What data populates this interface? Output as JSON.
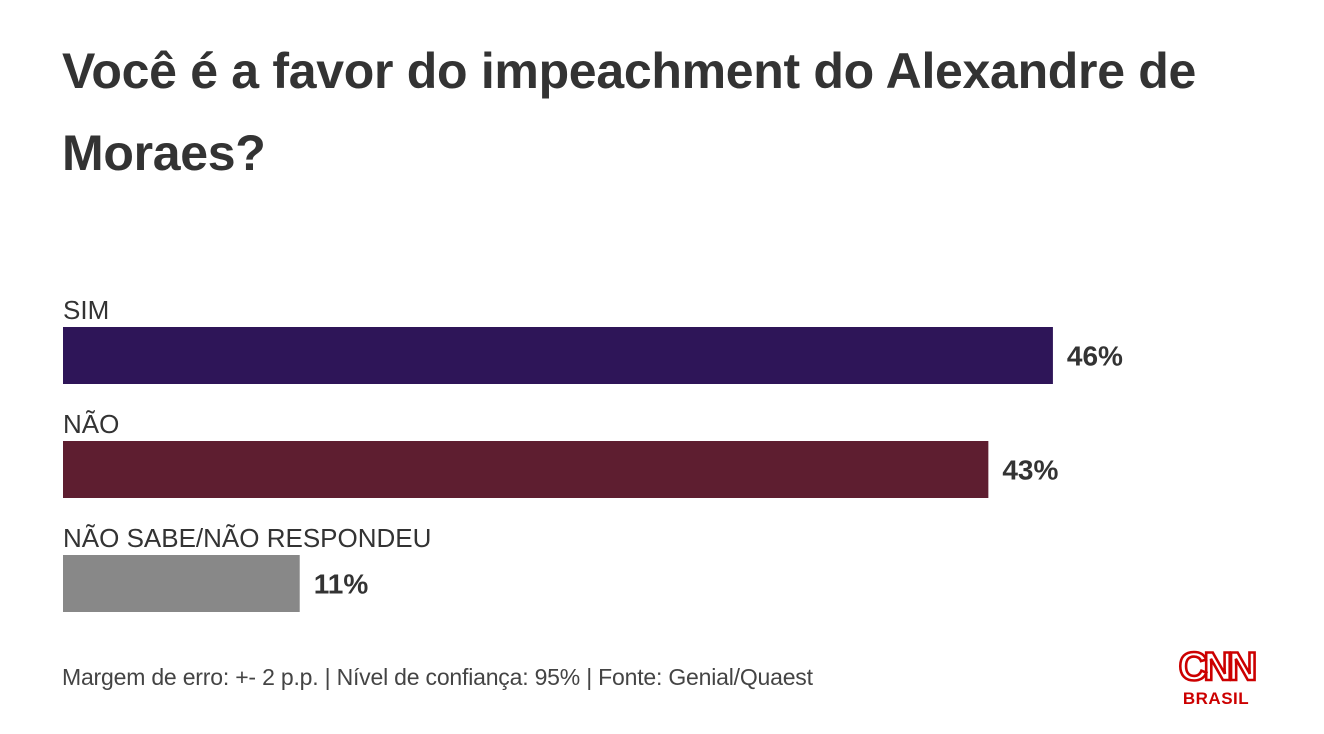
{
  "chart_data": {
    "type": "bar",
    "orientation": "horizontal",
    "title": "Você é a favor do impeachment do Alexandre de Moraes?",
    "categories": [
      "SIM",
      "NÃO",
      "NÃO SABE/NÃO RESPONDEU"
    ],
    "values": [
      46,
      43,
      11
    ],
    "value_labels": [
      "46%",
      "43%",
      "11%"
    ],
    "colors": [
      "#2e1558",
      "#5e1e30",
      "#888888"
    ],
    "xlim": [
      0,
      100
    ],
    "grid": false,
    "legend": "none"
  },
  "footer": {
    "text": "Margem de erro: +- 2 p.p. | Nível de confiança: 95% | Fonte: Genial/Quaest"
  },
  "logo": {
    "main": "CNN",
    "sub": "BRASIL",
    "color": "#cc0000"
  }
}
